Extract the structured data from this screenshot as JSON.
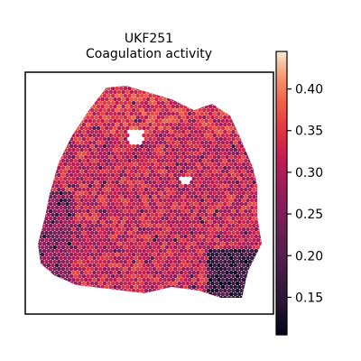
{
  "chart_data": {
    "type": "heatmap",
    "subtype": "spatial-spot-map",
    "title_line1": "UKF251",
    "title_line2": "Coagulation activity",
    "xlabel": "",
    "ylabel": "",
    "grid": false,
    "colormap": "rocket",
    "colorbar": {
      "vmin": 0.105,
      "vmax": 0.445,
      "ticks": [
        0.15,
        0.2,
        0.25,
        0.3,
        0.35,
        0.4
      ],
      "tick_labels": [
        "0.15",
        "0.20",
        "0.25",
        "0.30",
        "0.35",
        "0.40"
      ],
      "placement": "right"
    },
    "regions": [
      {
        "name": "tissue-overall",
        "typical_value": 0.32
      },
      {
        "name": "top-band",
        "typical_value": 0.34
      },
      {
        "name": "left-lobe",
        "typical_value": 0.26
      },
      {
        "name": "lower-right-corner",
        "typical_value": 0.17
      }
    ],
    "colors": {
      "background": "#ffffff",
      "frame": "#000000",
      "cmap_stops": [
        "#0b0405",
        "#28192f",
        "#3b2f5e",
        "#40498e",
        "#366a9f",
        "#348ba6",
        "#38aaac",
        "#55caad",
        "#a1e2b6"
      ]
    }
  }
}
